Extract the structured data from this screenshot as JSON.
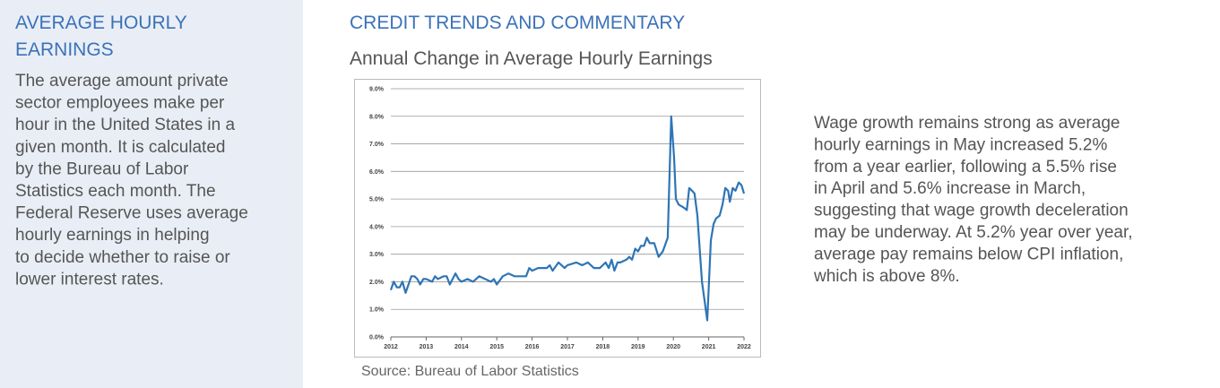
{
  "sidebar": {
    "title_lines": [
      "AVERAGE HOURLY",
      "EARNINGS"
    ],
    "body_lines": [
      "The average amount private",
      "sector employees make per",
      "hour in the United States in a",
      "given month.  It is calculated",
      "by the Bureau of Labor",
      "Statistics each month.  The",
      "Federal Reserve uses average",
      "hourly earnings in helping",
      "to decide whether to raise or",
      "lower interest rates."
    ]
  },
  "section_title": "CREDIT TRENDS AND COMMENTARY",
  "chart_data": {
    "type": "line",
    "title": "Annual Change in Average Hourly Earnings",
    "source": "Source: Bureau of Labor Statistics",
    "xlim": [
      2012,
      2022
    ],
    "xticks": [
      2012,
      2013,
      2014,
      2015,
      2016,
      2017,
      2018,
      2019,
      2020,
      2021,
      2022
    ],
    "ylim": [
      0,
      9
    ],
    "yticks": [
      {
        "value": 0,
        "label": "0.0%"
      },
      {
        "value": 1,
        "label": "1.0%"
      },
      {
        "value": 2,
        "label": "2.0%"
      },
      {
        "value": 3,
        "label": "3.0%"
      },
      {
        "value": 4,
        "label": "4.0%"
      },
      {
        "value": 5,
        "label": "5.0%"
      },
      {
        "value": 6,
        "label": "6.0%"
      },
      {
        "value": 7,
        "label": "7.0%"
      },
      {
        "value": 8,
        "label": "8.0%"
      },
      {
        "value": 9,
        "label": "9.0%"
      }
    ],
    "grid": true,
    "series": [
      {
        "color": "#2e75b6",
        "x": [
          2012.0,
          2012.08,
          2012.17,
          2012.25,
          2012.33,
          2012.42,
          2012.5,
          2012.58,
          2012.67,
          2012.75,
          2012.83,
          2012.92,
          2013.0,
          2013.17,
          2013.25,
          2013.33,
          2013.5,
          2013.58,
          2013.67,
          2013.83,
          2013.92,
          2014.0,
          2014.17,
          2014.33,
          2014.5,
          2014.67,
          2014.83,
          2014.92,
          2015.0,
          2015.17,
          2015.33,
          2015.5,
          2015.67,
          2015.83,
          2015.92,
          2016.0,
          2016.17,
          2016.42,
          2016.5,
          2016.58,
          2016.75,
          2016.92,
          2017.0,
          2017.25,
          2017.42,
          2017.58,
          2017.75,
          2017.92,
          2018.0,
          2018.08,
          2018.17,
          2018.25,
          2018.33,
          2018.42,
          2018.5,
          2018.67,
          2018.75,
          2018.83,
          2018.92,
          2019.0,
          2019.08,
          2019.17,
          2019.25,
          2019.33,
          2019.46,
          2019.58,
          2019.7,
          2019.84,
          2019.94,
          2020.02,
          2020.07,
          2020.15,
          2020.28,
          2020.38,
          2020.45,
          2020.53,
          2020.6,
          2020.68,
          2020.81,
          2020.96,
          2021.06,
          2021.14,
          2021.21,
          2021.31,
          2021.39,
          2021.47,
          2021.55,
          2021.6,
          2021.68,
          2021.76,
          2021.85,
          2021.93,
          2022.0
        ],
        "values": [
          1.7,
          2.0,
          1.8,
          1.8,
          2.0,
          1.6,
          1.9,
          2.2,
          2.2,
          2.1,
          1.9,
          2.1,
          2.1,
          2.0,
          2.2,
          2.1,
          2.2,
          2.2,
          1.9,
          2.3,
          2.1,
          2.0,
          2.1,
          2.0,
          2.2,
          2.1,
          2.0,
          2.1,
          1.9,
          2.2,
          2.3,
          2.2,
          2.2,
          2.2,
          2.5,
          2.4,
          2.5,
          2.5,
          2.6,
          2.4,
          2.7,
          2.5,
          2.6,
          2.7,
          2.6,
          2.7,
          2.5,
          2.5,
          2.6,
          2.7,
          2.5,
          2.8,
          2.4,
          2.7,
          2.7,
          2.8,
          2.9,
          2.8,
          3.2,
          3.1,
          3.3,
          3.3,
          3.6,
          3.4,
          3.4,
          2.9,
          3.1,
          3.6,
          8.0,
          6.5,
          5.0,
          4.8,
          4.7,
          4.6,
          5.4,
          5.3,
          5.2,
          4.4,
          2.0,
          0.6,
          3.5,
          4.1,
          4.3,
          4.4,
          4.8,
          5.4,
          5.3,
          4.9,
          5.4,
          5.3,
          5.6,
          5.5,
          5.2
        ]
      }
    ]
  },
  "commentary": {
    "lines": [
      "Wage growth remains strong as average",
      "hourly earnings in May increased 5.2%",
      "from a year earlier, following a 5.5% rise",
      "in April and 5.6% increase in March,",
      "suggesting that wage growth deceleration",
      "may be underway.  At 5.2% year over year,",
      "average pay remains below CPI inflation,",
      "which is above 8%."
    ]
  }
}
